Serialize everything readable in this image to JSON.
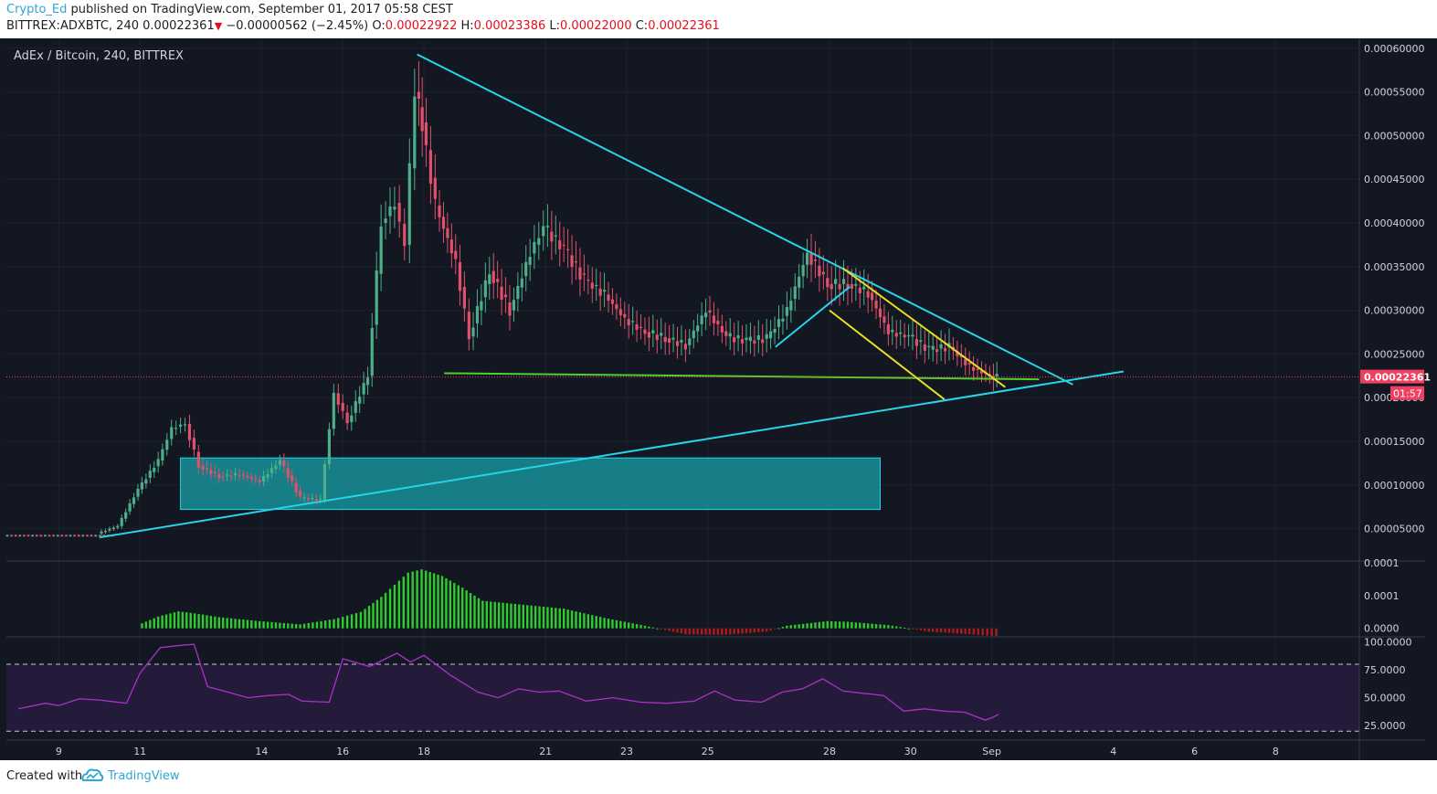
{
  "header": {
    "author": "Crypto_Ed",
    "published_text": "published on TradingView.com, September 01, 2017 05:58 CEST",
    "symbol": "BITTREX:ADXBTC, 240",
    "last": "0.00022361",
    "change": "−0.00000562 (−2.45%)",
    "o_label": "O:",
    "o_value": "0.00022922",
    "h_label": "H:",
    "h_value": "0.00023386",
    "l_label": "L:",
    "l_value": "0.00022000",
    "c_label": "C:",
    "c_value": "0.00022361"
  },
  "footer": {
    "created_with": "Created with",
    "brand": "TradingView"
  },
  "colors": {
    "background": "#131722",
    "up": "#4caf8a",
    "down": "#e0506a",
    "trendline": "#27d4e8",
    "support": "#4cd12a",
    "wedge": "#e8e020",
    "zone": "#1aa0a8",
    "rsi": "#a832c8",
    "rsi_band": "#241a3a",
    "price_tag": "#f04060",
    "hist_up": "#2fcc2f",
    "hist_down": "#b01a1a"
  },
  "chart_data": [
    {
      "type": "candlestick",
      "title": "AdEx / Bitcoin, 240, BITTREX",
      "x_tick_labels": [
        "9",
        "11",
        "14",
        "16",
        "18",
        "21",
        "23",
        "25",
        "28",
        "30",
        "Sep",
        "4",
        "6",
        "8"
      ],
      "y_tick_labels": [
        "0.00060000",
        "0.00055000",
        "0.00050000",
        "0.00045000",
        "0.00040000",
        "0.00035000",
        "0.00030000",
        "0.00025000",
        "0.00020000",
        "0.00015000",
        "0.00010000",
        "0.00005000"
      ],
      "ylim": [
        1.3e-05,
        0.000605
      ],
      "x_range_days": [
        "2017-08-08",
        "2017-09-09"
      ],
      "last_price": "0.00022361",
      "countdown": "01:57",
      "series": [
        {
          "name": "",
          "points": [
            {
              "x": "2017-08-10T00",
              "y": 4.45e-05
            },
            {
              "x": "2017-08-10T12",
              "y": 5.3e-05
            },
            {
              "x": "2017-08-11T00",
              "y": 9.5e-05
            },
            {
              "x": "2017-08-11T12",
              "y": 0.000128
            },
            {
              "x": "2017-08-11T20",
              "y": 0.000165
            },
            {
              "x": "2017-08-12T04",
              "y": 0.00017
            },
            {
              "x": "2017-08-12T12",
              "y": 0.000122
            },
            {
              "x": "2017-08-13T00",
              "y": 0.00011
            },
            {
              "x": "2017-08-13T12",
              "y": 0.000112
            },
            {
              "x": "2017-08-14T00",
              "y": 0.000104
            },
            {
              "x": "2017-08-14T12",
              "y": 0.000128
            },
            {
              "x": "2017-08-15T00",
              "y": 8.5e-05
            },
            {
              "x": "2017-08-15T12",
              "y": 8.3e-05
            },
            {
              "x": "2017-08-15T20",
              "y": 0.000205
            },
            {
              "x": "2017-08-16T04",
              "y": 0.000172
            },
            {
              "x": "2017-08-16T16",
              "y": 0.000225
            },
            {
              "x": "2017-08-17T00",
              "y": 0.0004
            },
            {
              "x": "2017-08-17T08",
              "y": 0.000423
            },
            {
              "x": "2017-08-17T14",
              "y": 0.000375
            },
            {
              "x": "2017-08-17T20",
              "y": 0.00055
            },
            {
              "x": "2017-08-18T00",
              "y": 0.000515
            },
            {
              "x": "2017-08-18T08",
              "y": 0.00042
            },
            {
              "x": "2017-08-18T20",
              "y": 0.000355
            },
            {
              "x": "2017-08-19T04",
              "y": 0.00027
            },
            {
              "x": "2017-08-19T16",
              "y": 0.000345
            },
            {
              "x": "2017-08-20T04",
              "y": 0.0003
            },
            {
              "x": "2017-08-20T16",
              "y": 0.000365
            },
            {
              "x": "2017-08-21T00",
              "y": 0.000395
            },
            {
              "x": "2017-08-21T12",
              "y": 0.00037
            },
            {
              "x": "2017-08-22T00",
              "y": 0.000335
            },
            {
              "x": "2017-08-22T12",
              "y": 0.000318
            },
            {
              "x": "2017-08-23T00",
              "y": 0.00029
            },
            {
              "x": "2017-08-23T12",
              "y": 0.000275
            },
            {
              "x": "2017-08-24T00",
              "y": 0.000268
            },
            {
              "x": "2017-08-24T12",
              "y": 0.00026
            },
            {
              "x": "2017-08-25T00",
              "y": 0.0003
            },
            {
              "x": "2017-08-25T12",
              "y": 0.00027
            },
            {
              "x": "2017-08-26T00",
              "y": 0.000265
            },
            {
              "x": "2017-08-26T12",
              "y": 0.000268
            },
            {
              "x": "2017-08-27T00",
              "y": 0.0003
            },
            {
              "x": "2017-08-27T12",
              "y": 0.000365
            },
            {
              "x": "2017-08-28T00",
              "y": 0.00033
            },
            {
              "x": "2017-08-28T12",
              "y": 0.00033
            },
            {
              "x": "2017-08-29T00",
              "y": 0.00032
            },
            {
              "x": "2017-08-29T12",
              "y": 0.000275
            },
            {
              "x": "2017-08-30T00",
              "y": 0.00027
            },
            {
              "x": "2017-08-30T12",
              "y": 0.000255
            },
            {
              "x": "2017-08-31T00",
              "y": 0.000258
            },
            {
              "x": "2017-08-31T12",
              "y": 0.000235
            },
            {
              "x": "2017-09-01T00",
              "y": 0.000225
            },
            {
              "x": "2017-09-01T04",
              "y": 0.0002236
            }
          ]
        }
      ],
      "annotations": [
        {
          "kind": "trendline",
          "color": "trendline",
          "from": {
            "x": "2017-08-17T20",
            "y": 0.000593
          },
          "to": {
            "x": "2017-09-03T00",
            "y": 0.000215
          }
        },
        {
          "kind": "trendline",
          "color": "trendline",
          "from": {
            "x": "2017-08-10T00",
            "y": 4e-05
          },
          "to": {
            "x": "2017-09-04T06",
            "y": 0.00023
          }
        },
        {
          "kind": "trendline",
          "color": "support",
          "from": {
            "x": "2017-08-18T12",
            "y": 0.000228
          },
          "to": {
            "x": "2017-09-02T04",
            "y": 0.000221
          }
        },
        {
          "kind": "trendline",
          "color": "wedge",
          "from": {
            "x": "2017-08-28T08",
            "y": 0.000348
          },
          "to": {
            "x": "2017-09-01T08",
            "y": 0.000212
          }
        },
        {
          "kind": "trendline",
          "color": "wedge",
          "from": {
            "x": "2017-08-28T00",
            "y": 0.0003
          },
          "to": {
            "x": "2017-08-30T20",
            "y": 0.000198
          }
        },
        {
          "kind": "trendline",
          "color": "trendline",
          "from": {
            "x": "2017-08-26T16",
            "y": 0.000258
          },
          "to": {
            "x": "2017-08-28T12",
            "y": 0.000327
          }
        },
        {
          "kind": "zone",
          "color": "zone",
          "x_from": "2017-08-12T00",
          "x_to": "2017-08-29T06",
          "y_from": 7.2e-05,
          "y_to": 0.000131
        }
      ]
    },
    {
      "type": "histogram",
      "y_tick_labels": [
        "0.0001",
        "0.0001",
        "0.0000"
      ],
      "ylim": [
        -1.3e-05,
        0.0001
      ],
      "series": [
        {
          "name": "",
          "points": [
            {
              "x": "2017-08-11T00",
              "y": 5e-06
            },
            {
              "x": "2017-08-11T12",
              "y": 1.8e-05
            },
            {
              "x": "2017-08-12T00",
              "y": 2.6e-05
            },
            {
              "x": "2017-08-12T12",
              "y": 2.2e-05
            },
            {
              "x": "2017-08-13T00",
              "y": 1.7e-05
            },
            {
              "x": "2017-08-14T00",
              "y": 1.1e-05
            },
            {
              "x": "2017-08-15T00",
              "y": 6e-06
            },
            {
              "x": "2017-08-15T20",
              "y": 1.4e-05
            },
            {
              "x": "2017-08-16T12",
              "y": 2.5e-05
            },
            {
              "x": "2017-08-17T00",
              "y": 4.8e-05
            },
            {
              "x": "2017-08-17T16",
              "y": 8.5e-05
            },
            {
              "x": "2017-08-18T00",
              "y": 9e-05
            },
            {
              "x": "2017-08-18T12",
              "y": 8e-05
            },
            {
              "x": "2017-08-19T00",
              "y": 6.2e-05
            },
            {
              "x": "2017-08-19T12",
              "y": 4.2e-05
            },
            {
              "x": "2017-08-20T12",
              "y": 3.6e-05
            },
            {
              "x": "2017-08-21T12",
              "y": 3e-05
            },
            {
              "x": "2017-08-22T12",
              "y": 1.6e-05
            },
            {
              "x": "2017-08-23T12",
              "y": 4e-06
            },
            {
              "x": "2017-08-24T12",
              "y": -9e-06
            },
            {
              "x": "2017-08-25T12",
              "y": -1e-05
            },
            {
              "x": "2017-08-26T12",
              "y": -5e-06
            },
            {
              "x": "2017-08-27T00",
              "y": 4e-06
            },
            {
              "x": "2017-08-28T00",
              "y": 1.1e-05
            },
            {
              "x": "2017-08-28T12",
              "y": 1e-05
            },
            {
              "x": "2017-08-29T12",
              "y": 5e-06
            },
            {
              "x": "2017-08-30T12",
              "y": -5e-06
            },
            {
              "x": "2017-08-31T12",
              "y": -9e-06
            },
            {
              "x": "2017-09-01T04",
              "y": -1.2e-05
            }
          ]
        }
      ]
    },
    {
      "type": "line",
      "y_tick_labels": [
        "100.0000",
        "75.0000",
        "50.0000",
        "25.0000"
      ],
      "ylim": [
        12,
        103
      ],
      "bands": [
        20,
        80
      ],
      "series": [
        {
          "name": "",
          "points": [
            {
              "x": "2017-08-08T00",
              "y": 40
            },
            {
              "x": "2017-08-08T16",
              "y": 45
            },
            {
              "x": "2017-08-09T00",
              "y": 43
            },
            {
              "x": "2017-08-09T12",
              "y": 49
            },
            {
              "x": "2017-08-10T00",
              "y": 48
            },
            {
              "x": "2017-08-10T16",
              "y": 45
            },
            {
              "x": "2017-08-11T00",
              "y": 72
            },
            {
              "x": "2017-08-11T12",
              "y": 95
            },
            {
              "x": "2017-08-12T00",
              "y": 97
            },
            {
              "x": "2017-08-12T08",
              "y": 98
            },
            {
              "x": "2017-08-12T16",
              "y": 60
            },
            {
              "x": "2017-08-13T04",
              "y": 55
            },
            {
              "x": "2017-08-13T16",
              "y": 50
            },
            {
              "x": "2017-08-14T04",
              "y": 52
            },
            {
              "x": "2017-08-14T16",
              "y": 53
            },
            {
              "x": "2017-08-15T00",
              "y": 47
            },
            {
              "x": "2017-08-15T16",
              "y": 46
            },
            {
              "x": "2017-08-16T00",
              "y": 85
            },
            {
              "x": "2017-08-16T16",
              "y": 78
            },
            {
              "x": "2017-08-17T08",
              "y": 90
            },
            {
              "x": "2017-08-17T16",
              "y": 82
            },
            {
              "x": "2017-08-18T00",
              "y": 88
            },
            {
              "x": "2017-08-18T16",
              "y": 70
            },
            {
              "x": "2017-08-19T08",
              "y": 55
            },
            {
              "x": "2017-08-19T20",
              "y": 50
            },
            {
              "x": "2017-08-20T08",
              "y": 58
            },
            {
              "x": "2017-08-20T20",
              "y": 55
            },
            {
              "x": "2017-08-21T08",
              "y": 56
            },
            {
              "x": "2017-08-22T00",
              "y": 47
            },
            {
              "x": "2017-08-22T16",
              "y": 50
            },
            {
              "x": "2017-08-23T08",
              "y": 46
            },
            {
              "x": "2017-08-24T00",
              "y": 45
            },
            {
              "x": "2017-08-24T16",
              "y": 47
            },
            {
              "x": "2017-08-25T04",
              "y": 56
            },
            {
              "x": "2017-08-25T16",
              "y": 48
            },
            {
              "x": "2017-08-26T08",
              "y": 46
            },
            {
              "x": "2017-08-26T20",
              "y": 55
            },
            {
              "x": "2017-08-27T08",
              "y": 58
            },
            {
              "x": "2017-08-27T20",
              "y": 67
            },
            {
              "x": "2017-08-28T08",
              "y": 56
            },
            {
              "x": "2017-08-28T20",
              "y": 54
            },
            {
              "x": "2017-08-29T08",
              "y": 52
            },
            {
              "x": "2017-08-29T20",
              "y": 38
            },
            {
              "x": "2017-08-30T08",
              "y": 40
            },
            {
              "x": "2017-08-30T20",
              "y": 38
            },
            {
              "x": "2017-08-31T08",
              "y": 37
            },
            {
              "x": "2017-08-31T20",
              "y": 30
            },
            {
              "x": "2017-09-01T00",
              "y": 32
            },
            {
              "x": "2017-09-01T04",
              "y": 35
            }
          ]
        }
      ]
    }
  ]
}
